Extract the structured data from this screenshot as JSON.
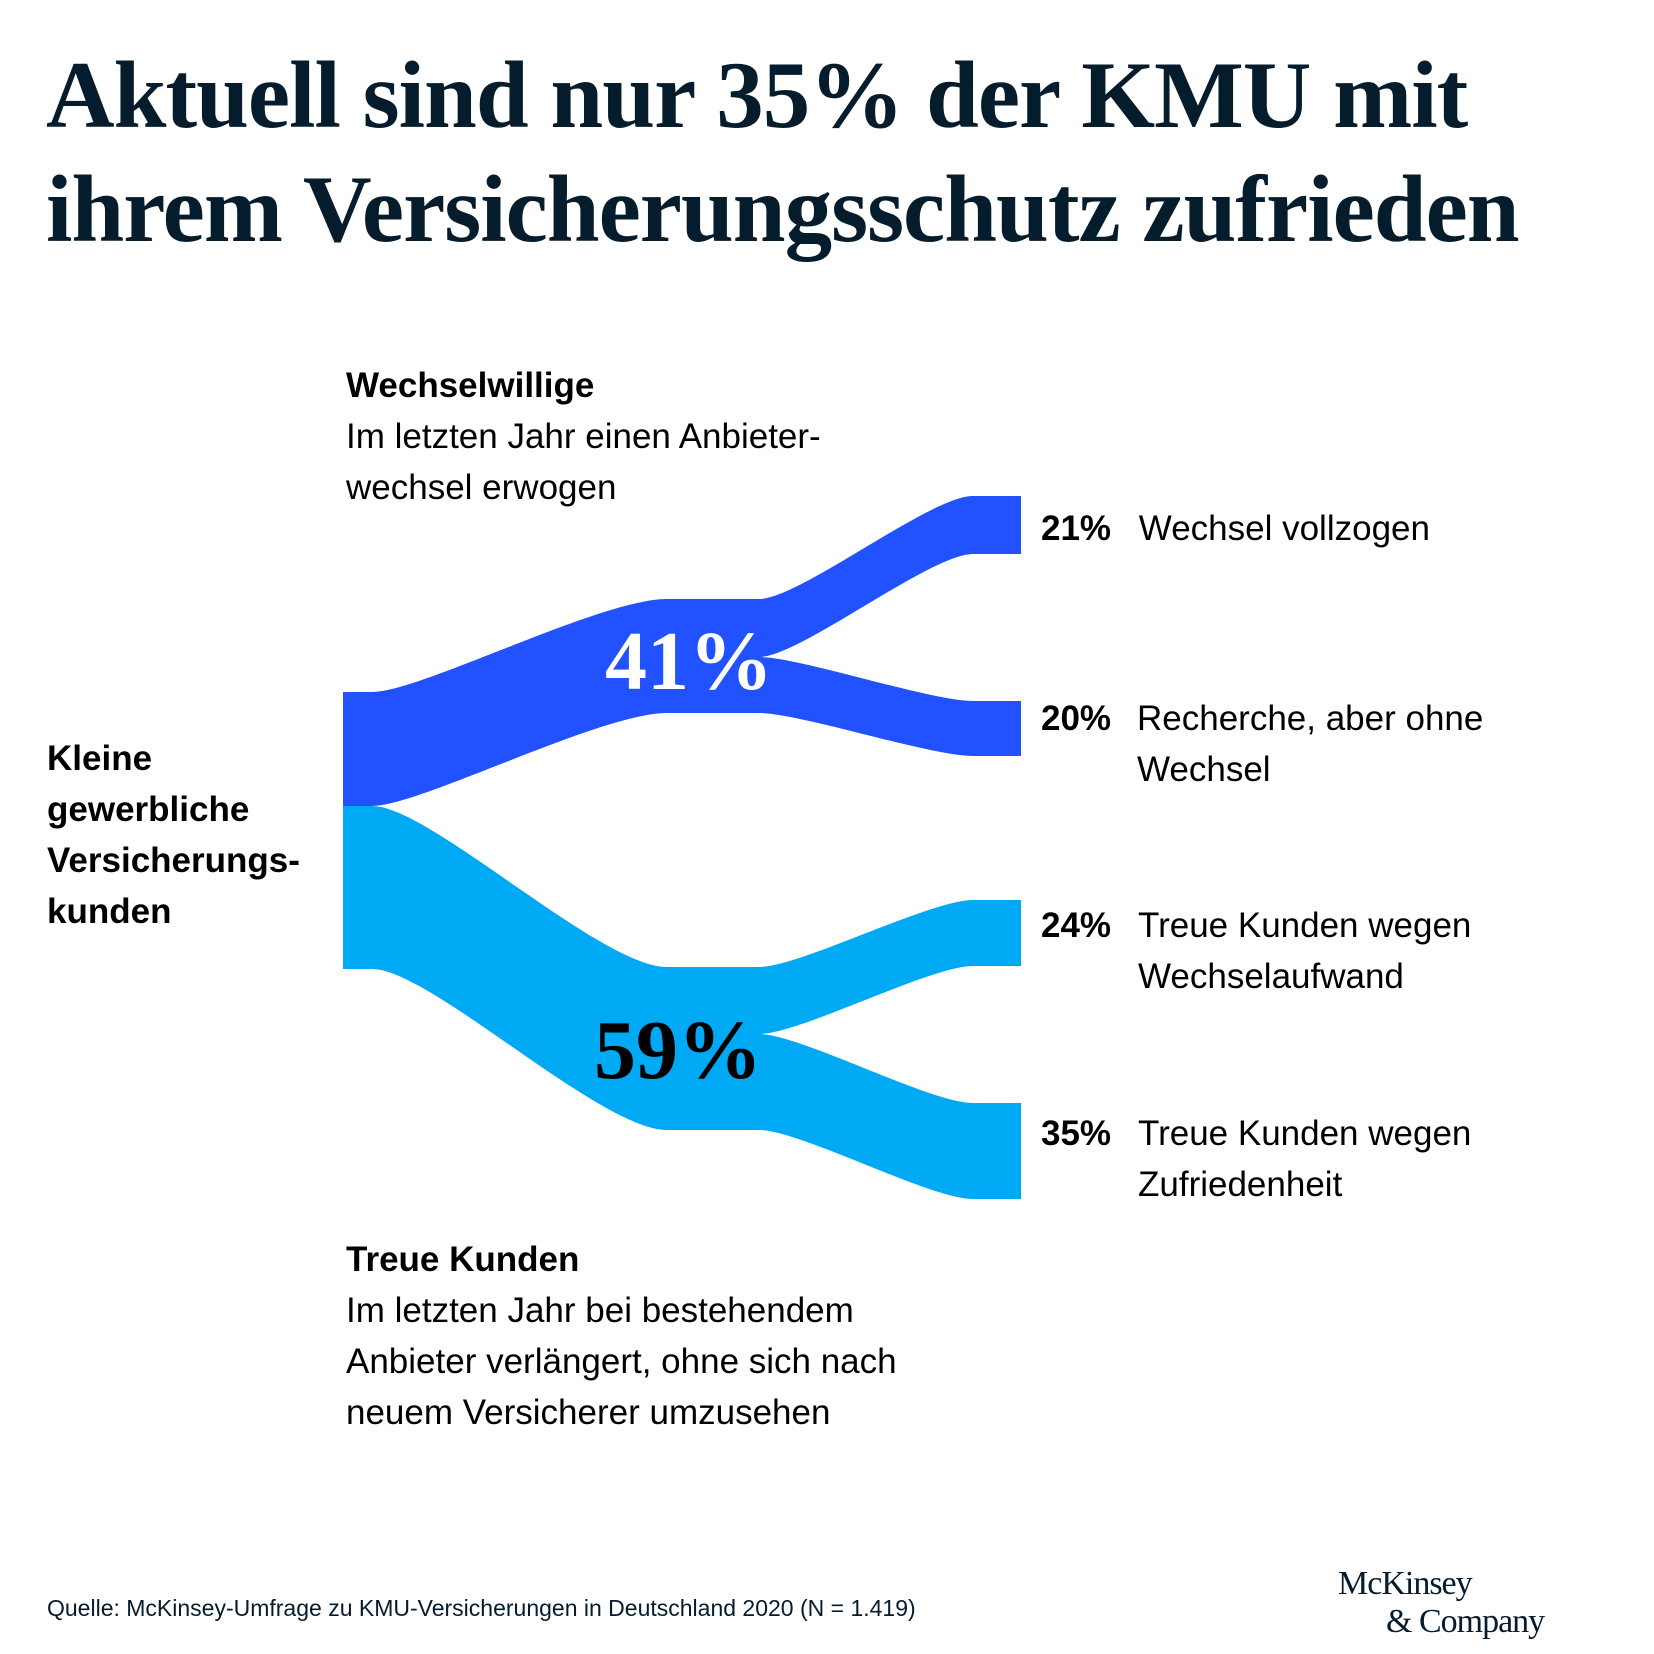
{
  "title": {
    "line1": "Aktuell sind nur 35% der KMU mit",
    "line2": "ihrem Versicherungsschutz zufrieden"
  },
  "colors": {
    "switchers": "#2251FF",
    "loyal": "#00A9F4",
    "text": "#051C2C"
  },
  "source_node": {
    "line1": "Kleine",
    "line2": "gewerbliche",
    "line3": "Versicherungs-",
    "line4": "kunden"
  },
  "switchers": {
    "heading": "Wechselwillige",
    "desc1": "Im letzten Jahr einen Anbieter-",
    "desc2": "wechsel erwogen",
    "value_label": "41%"
  },
  "loyal": {
    "heading": "Treue Kunden",
    "desc1": "Im letzten Jahr bei bestehendem",
    "desc2": "Anbieter verlängert, ohne sich nach",
    "desc3": "neuem Versicherer umzusehen",
    "value_label": "59%"
  },
  "outcomes": [
    {
      "pct": "21%",
      "line1": "Wechsel vollzogen",
      "line2": ""
    },
    {
      "pct": "20%",
      "line1": "Recherche, aber ohne",
      "line2": "Wechsel"
    },
    {
      "pct": "24%",
      "line1": "Treue Kunden wegen",
      "line2": "Wechselaufwand"
    },
    {
      "pct": "35%",
      "line1": "Treue Kunden wegen",
      "line2": "Zufriedenheit"
    }
  ],
  "footer": {
    "source": "Quelle: McKinsey-Umfrage zu KMU-Versicherungen in Deutschland 2020 (N = 1.419)"
  },
  "logo": {
    "line1": "McKinsey",
    "line2": "& Company"
  },
  "chart_data": {
    "type": "sankey",
    "title": "Aktuell sind nur 35% der KMU mit ihrem Versicherungsschutz zufrieden",
    "nodes": [
      "Kleine gewerbliche Versicherungskunden",
      "Wechselwillige",
      "Treue Kunden",
      "Wechsel vollzogen",
      "Recherche, aber ohne Wechsel",
      "Treue Kunden wegen Wechselaufwand",
      "Treue Kunden wegen Zufriedenheit"
    ],
    "links": [
      {
        "source": "Kleine gewerbliche Versicherungskunden",
        "target": "Wechselwillige",
        "value": 41
      },
      {
        "source": "Kleine gewerbliche Versicherungskunden",
        "target": "Treue Kunden",
        "value": 59
      },
      {
        "source": "Wechselwillige",
        "target": "Wechsel vollzogen",
        "value": 21
      },
      {
        "source": "Wechselwillige",
        "target": "Recherche, aber ohne Wechsel",
        "value": 20
      },
      {
        "source": "Treue Kunden",
        "target": "Treue Kunden wegen Wechselaufwand",
        "value": 24
      },
      {
        "source": "Treue Kunden",
        "target": "Treue Kunden wegen Zufriedenheit",
        "value": 35
      }
    ],
    "units": "%"
  }
}
